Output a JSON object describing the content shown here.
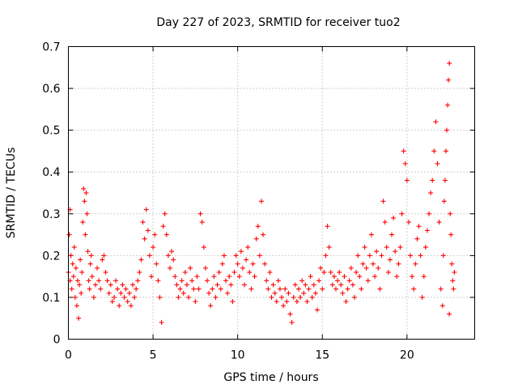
{
  "chart_data": {
    "type": "scatter",
    "title": "Day 227 of 2023, SRMTID for receiver tuo2",
    "xlabel": "GPS time / hours",
    "ylabel": "SRMTID / TECUs",
    "xlim": [
      0,
      24
    ],
    "ylim": [
      0,
      0.7
    ],
    "xticks": [
      0,
      5,
      10,
      15,
      20
    ],
    "yticks": [
      0,
      0.1,
      0.2,
      0.3,
      0.4,
      0.5,
      0.6,
      0.7
    ],
    "xtick_labels": [
      "0",
      "5",
      "10",
      "15",
      "20"
    ],
    "ytick_labels": [
      "0",
      "0.1",
      "0.2",
      "0.3",
      "0.4",
      "0.5",
      "0.6",
      "0.7"
    ],
    "grid": true,
    "marker": "+",
    "color": "#ff0000",
    "series": [
      {
        "name": "SRMTID",
        "points": [
          [
            0.0,
            0.16
          ],
          [
            0.05,
            0.25
          ],
          [
            0.1,
            0.31
          ],
          [
            0.1,
            0.14
          ],
          [
            0.15,
            0.2
          ],
          [
            0.2,
            0.12
          ],
          [
            0.25,
            0.18
          ],
          [
            0.3,
            0.15
          ],
          [
            0.35,
            0.22
          ],
          [
            0.4,
            0.1
          ],
          [
            0.45,
            0.17
          ],
          [
            0.5,
            0.08
          ],
          [
            0.55,
            0.14
          ],
          [
            0.6,
            0.05
          ],
          [
            0.65,
            0.13
          ],
          [
            0.7,
            0.19
          ],
          [
            0.75,
            0.11
          ],
          [
            0.8,
            0.16
          ],
          [
            0.85,
            0.28
          ],
          [
            0.9,
            0.36
          ],
          [
            0.95,
            0.33
          ],
          [
            1.0,
            0.25
          ],
          [
            1.05,
            0.35
          ],
          [
            1.1,
            0.3
          ],
          [
            1.15,
            0.21
          ],
          [
            1.2,
            0.14
          ],
          [
            1.25,
            0.12
          ],
          [
            1.3,
            0.18
          ],
          [
            1.35,
            0.2
          ],
          [
            1.4,
            0.15
          ],
          [
            1.5,
            0.1
          ],
          [
            1.6,
            0.13
          ],
          [
            1.7,
            0.17
          ],
          [
            1.8,
            0.14
          ],
          [
            1.9,
            0.12
          ],
          [
            2.0,
            0.19
          ],
          [
            2.1,
            0.2
          ],
          [
            2.2,
            0.16
          ],
          [
            2.3,
            0.14
          ],
          [
            2.4,
            0.11
          ],
          [
            2.5,
            0.13
          ],
          [
            2.6,
            0.09
          ],
          [
            2.7,
            0.1
          ],
          [
            2.8,
            0.14
          ],
          [
            2.9,
            0.12
          ],
          [
            3.0,
            0.08
          ],
          [
            3.1,
            0.11
          ],
          [
            3.2,
            0.13
          ],
          [
            3.3,
            0.1
          ],
          [
            3.4,
            0.12
          ],
          [
            3.5,
            0.09
          ],
          [
            3.6,
            0.11
          ],
          [
            3.7,
            0.08
          ],
          [
            3.8,
            0.13
          ],
          [
            3.9,
            0.1
          ],
          [
            4.0,
            0.12
          ],
          [
            4.1,
            0.14
          ],
          [
            4.2,
            0.16
          ],
          [
            4.3,
            0.19
          ],
          [
            4.4,
            0.28
          ],
          [
            4.5,
            0.24
          ],
          [
            4.6,
            0.31
          ],
          [
            4.7,
            0.26
          ],
          [
            4.8,
            0.2
          ],
          [
            4.9,
            0.15
          ],
          [
            5.0,
            0.22
          ],
          [
            5.1,
            0.25
          ],
          [
            5.2,
            0.18
          ],
          [
            5.3,
            0.14
          ],
          [
            5.4,
            0.1
          ],
          [
            5.5,
            0.04
          ],
          [
            5.6,
            0.27
          ],
          [
            5.7,
            0.3
          ],
          [
            5.8,
            0.25
          ],
          [
            5.9,
            0.2
          ],
          [
            6.0,
            0.17
          ],
          [
            6.1,
            0.21
          ],
          [
            6.2,
            0.19
          ],
          [
            6.3,
            0.15
          ],
          [
            6.4,
            0.13
          ],
          [
            6.5,
            0.1
          ],
          [
            6.6,
            0.12
          ],
          [
            6.7,
            0.14
          ],
          [
            6.8,
            0.11
          ],
          [
            6.9,
            0.16
          ],
          [
            7.0,
            0.13
          ],
          [
            7.1,
            0.1
          ],
          [
            7.2,
            0.17
          ],
          [
            7.3,
            0.14
          ],
          [
            7.4,
            0.12
          ],
          [
            7.5,
            0.09
          ],
          [
            7.6,
            0.15
          ],
          [
            7.7,
            0.12
          ],
          [
            7.8,
            0.3
          ],
          [
            7.9,
            0.28
          ],
          [
            8.0,
            0.22
          ],
          [
            8.1,
            0.17
          ],
          [
            8.2,
            0.14
          ],
          [
            8.3,
            0.11
          ],
          [
            8.4,
            0.08
          ],
          [
            8.5,
            0.12
          ],
          [
            8.6,
            0.15
          ],
          [
            8.7,
            0.1
          ],
          [
            8.8,
            0.13
          ],
          [
            8.9,
            0.16
          ],
          [
            9.0,
            0.12
          ],
          [
            9.1,
            0.18
          ],
          [
            9.2,
            0.2
          ],
          [
            9.3,
            0.14
          ],
          [
            9.4,
            0.11
          ],
          [
            9.5,
            0.15
          ],
          [
            9.6,
            0.13
          ],
          [
            9.7,
            0.09
          ],
          [
            9.8,
            0.16
          ],
          [
            9.9,
            0.2
          ],
          [
            10.0,
            0.18
          ],
          [
            10.1,
            0.15
          ],
          [
            10.2,
            0.21
          ],
          [
            10.3,
            0.17
          ],
          [
            10.4,
            0.13
          ],
          [
            10.5,
            0.19
          ],
          [
            10.6,
            0.22
          ],
          [
            10.7,
            0.16
          ],
          [
            10.8,
            0.12
          ],
          [
            10.9,
            0.18
          ],
          [
            11.0,
            0.15
          ],
          [
            11.1,
            0.24
          ],
          [
            11.2,
            0.27
          ],
          [
            11.3,
            0.2
          ],
          [
            11.4,
            0.33
          ],
          [
            11.5,
            0.25
          ],
          [
            11.6,
            0.18
          ],
          [
            11.7,
            0.14
          ],
          [
            11.8,
            0.12
          ],
          [
            11.9,
            0.16
          ],
          [
            12.0,
            0.1
          ],
          [
            12.1,
            0.13
          ],
          [
            12.2,
            0.11
          ],
          [
            12.3,
            0.09
          ],
          [
            12.4,
            0.14
          ],
          [
            12.5,
            0.12
          ],
          [
            12.6,
            0.1
          ],
          [
            12.7,
            0.08
          ],
          [
            12.8,
            0.12
          ],
          [
            12.9,
            0.09
          ],
          [
            13.0,
            0.11
          ],
          [
            13.1,
            0.06
          ],
          [
            13.2,
            0.04
          ],
          [
            13.3,
            0.1
          ],
          [
            13.4,
            0.13
          ],
          [
            13.5,
            0.09
          ],
          [
            13.6,
            0.12
          ],
          [
            13.7,
            0.1
          ],
          [
            13.8,
            0.14
          ],
          [
            13.9,
            0.11
          ],
          [
            14.0,
            0.13
          ],
          [
            14.1,
            0.09
          ],
          [
            14.2,
            0.12
          ],
          [
            14.3,
            0.15
          ],
          [
            14.4,
            0.1
          ],
          [
            14.5,
            0.13
          ],
          [
            14.6,
            0.11
          ],
          [
            14.7,
            0.07
          ],
          [
            14.8,
            0.14
          ],
          [
            14.9,
            0.17
          ],
          [
            15.0,
            0.12
          ],
          [
            15.1,
            0.16
          ],
          [
            15.2,
            0.2
          ],
          [
            15.3,
            0.27
          ],
          [
            15.4,
            0.22
          ],
          [
            15.5,
            0.16
          ],
          [
            15.6,
            0.13
          ],
          [
            15.7,
            0.15
          ],
          [
            15.8,
            0.12
          ],
          [
            15.9,
            0.14
          ],
          [
            16.0,
            0.16
          ],
          [
            16.1,
            0.13
          ],
          [
            16.2,
            0.11
          ],
          [
            16.3,
            0.15
          ],
          [
            16.4,
            0.09
          ],
          [
            16.5,
            0.12
          ],
          [
            16.6,
            0.14
          ],
          [
            16.7,
            0.17
          ],
          [
            16.8,
            0.13
          ],
          [
            16.9,
            0.1
          ],
          [
            17.0,
            0.16
          ],
          [
            17.1,
            0.2
          ],
          [
            17.2,
            0.15
          ],
          [
            17.3,
            0.12
          ],
          [
            17.4,
            0.18
          ],
          [
            17.5,
            0.22
          ],
          [
            17.6,
            0.17
          ],
          [
            17.7,
            0.14
          ],
          [
            17.8,
            0.2
          ],
          [
            17.9,
            0.25
          ],
          [
            18.0,
            0.18
          ],
          [
            18.1,
            0.15
          ],
          [
            18.2,
            0.21
          ],
          [
            18.3,
            0.17
          ],
          [
            18.4,
            0.12
          ],
          [
            18.5,
            0.2
          ],
          [
            18.6,
            0.33
          ],
          [
            18.7,
            0.28
          ],
          [
            18.8,
            0.22
          ],
          [
            18.9,
            0.16
          ],
          [
            19.0,
            0.19
          ],
          [
            19.1,
            0.25
          ],
          [
            19.2,
            0.29
          ],
          [
            19.3,
            0.21
          ],
          [
            19.4,
            0.15
          ],
          [
            19.5,
            0.18
          ],
          [
            19.6,
            0.22
          ],
          [
            19.7,
            0.3
          ],
          [
            19.8,
            0.45
          ],
          [
            19.9,
            0.42
          ],
          [
            20.0,
            0.38
          ],
          [
            20.1,
            0.28
          ],
          [
            20.2,
            0.2
          ],
          [
            20.3,
            0.15
          ],
          [
            20.4,
            0.12
          ],
          [
            20.5,
            0.18
          ],
          [
            20.6,
            0.24
          ],
          [
            20.7,
            0.27
          ],
          [
            20.8,
            0.2
          ],
          [
            20.9,
            0.1
          ],
          [
            21.0,
            0.15
          ],
          [
            21.1,
            0.22
          ],
          [
            21.2,
            0.26
          ],
          [
            21.3,
            0.3
          ],
          [
            21.4,
            0.35
          ],
          [
            21.5,
            0.38
          ],
          [
            21.6,
            0.45
          ],
          [
            21.7,
            0.52
          ],
          [
            21.8,
            0.42
          ],
          [
            21.9,
            0.28
          ],
          [
            22.0,
            0.12
          ],
          [
            22.1,
            0.08
          ],
          [
            22.15,
            0.2
          ],
          [
            22.2,
            0.33
          ],
          [
            22.25,
            0.38
          ],
          [
            22.3,
            0.45
          ],
          [
            22.35,
            0.5
          ],
          [
            22.4,
            0.56
          ],
          [
            22.45,
            0.62
          ],
          [
            22.5,
            0.66
          ],
          [
            22.5,
            0.06
          ],
          [
            22.55,
            0.3
          ],
          [
            22.6,
            0.25
          ],
          [
            22.65,
            0.18
          ],
          [
            22.7,
            0.14
          ],
          [
            22.75,
            0.12
          ],
          [
            22.8,
            0.16
          ]
        ]
      }
    ]
  }
}
